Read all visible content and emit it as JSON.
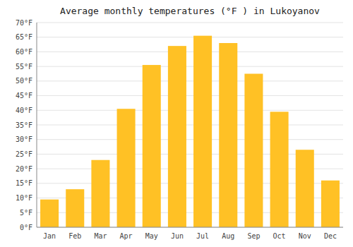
{
  "chart_data": {
    "type": "bar",
    "title": "Average monthly temperatures (°F ) in Lukoyanov",
    "categories": [
      "Jan",
      "Feb",
      "Mar",
      "Apr",
      "May",
      "Jun",
      "Jul",
      "Aug",
      "Sep",
      "Oct",
      "Nov",
      "Dec"
    ],
    "values": [
      9.5,
      13,
      23,
      40.5,
      55.5,
      62,
      65.5,
      63,
      52.5,
      39.5,
      26.5,
      16
    ],
    "color": "#FFC125",
    "ylim": [
      0,
      70
    ],
    "yticks": [
      {
        "value": 0,
        "label": "0°F"
      },
      {
        "value": 5,
        "label": "5°F"
      },
      {
        "value": 10,
        "label": "10°F"
      },
      {
        "value": 15,
        "label": "15°F"
      },
      {
        "value": 20,
        "label": "20°F"
      },
      {
        "value": 25,
        "label": "25°F"
      },
      {
        "value": 30,
        "label": "30°F"
      },
      {
        "value": 35,
        "label": "35°F"
      },
      {
        "value": 40,
        "label": "40°F"
      },
      {
        "value": 45,
        "label": "45°F"
      },
      {
        "value": 50,
        "label": "50°F"
      },
      {
        "value": 55,
        "label": "55°F"
      },
      {
        "value": 60,
        "label": "60°F"
      },
      {
        "value": 65,
        "label": "65°F"
      },
      {
        "value": 70,
        "label": "70°F"
      }
    ],
    "grid": true
  }
}
